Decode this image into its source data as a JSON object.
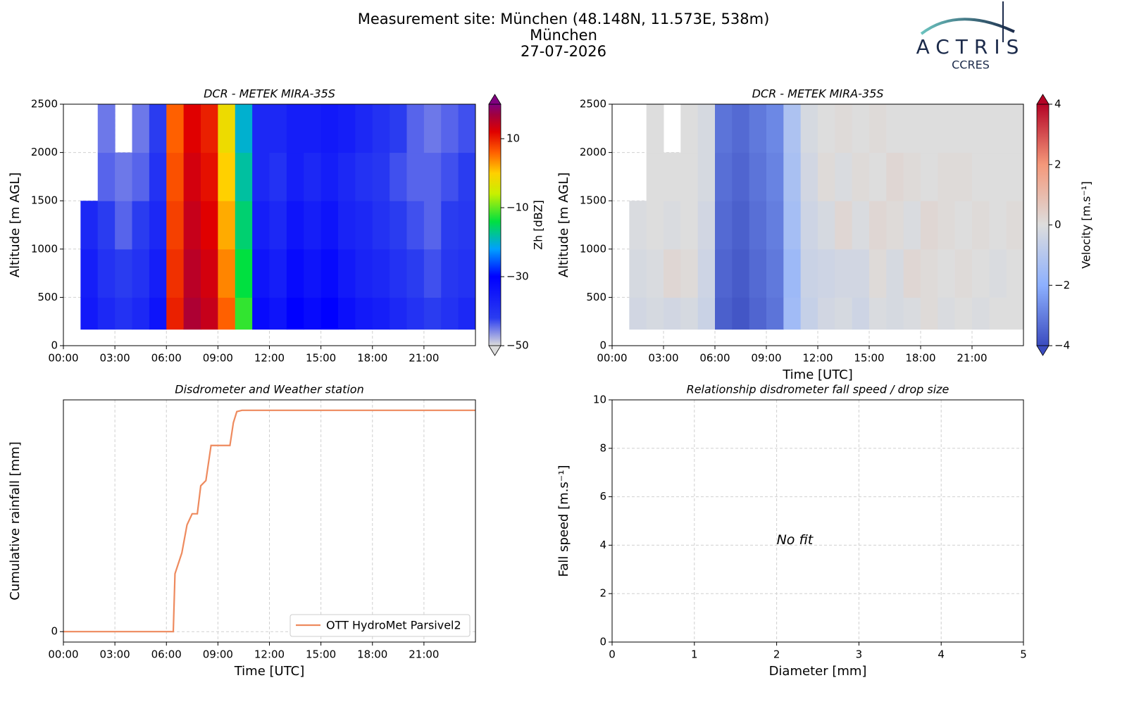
{
  "header": {
    "title_lines": [
      "Measurement site: München (48.148N, 11.573E, 538m)",
      "München",
      "27-07-2026"
    ]
  },
  "logo": {
    "name": "ACTRIS",
    "sub": "CCRES"
  },
  "chart_data": [
    {
      "type": "heatmap",
      "title": "DCR - METEK MIRA-35S",
      "ylabel": "Altitude [m AGL]",
      "xlim": [
        0,
        24
      ],
      "ylim": [
        0,
        2500
      ],
      "xticks": [
        {
          "value": 0,
          "label": "00:00"
        },
        {
          "value": 3,
          "label": "03:00"
        },
        {
          "value": 6,
          "label": "06:00"
        },
        {
          "value": 9,
          "label": "09:00"
        },
        {
          "value": 12,
          "label": "12:00"
        },
        {
          "value": 15,
          "label": "15:00"
        },
        {
          "value": 18,
          "label": "18:00"
        },
        {
          "value": 21,
          "label": "21:00"
        }
      ],
      "yticks": [
        0,
        500,
        1000,
        1500,
        2000,
        2500
      ],
      "grid": true,
      "x_bins": [
        0,
        1,
        2,
        3,
        4,
        5,
        6,
        7,
        8,
        9,
        10,
        11,
        12,
        13,
        14,
        15,
        16,
        17,
        18,
        19,
        20,
        21,
        22,
        23,
        24
      ],
      "y_bins": [
        170,
        500,
        1000,
        1500,
        2000,
        2500
      ],
      "values": [
        [
          null,
          -35,
          -38,
          -40,
          -38,
          -34,
          10,
          16,
          14,
          6,
          -12,
          -32,
          -34,
          -30,
          -32,
          -30,
          -33,
          -35,
          -36,
          -38,
          -40,
          -42,
          -40,
          -38
        ],
        [
          null,
          -36,
          -40,
          -42,
          -40,
          -36,
          9,
          15,
          13,
          4,
          -14,
          -34,
          -36,
          -32,
          -34,
          -32,
          -35,
          -37,
          -38,
          -40,
          -42,
          -43,
          -41,
          -40
        ],
        [
          null,
          -38,
          -42,
          -44,
          -42,
          -38,
          8,
          14,
          12,
          2,
          -16,
          -36,
          -38,
          -34,
          -36,
          -34,
          -37,
          -38,
          -40,
          -42,
          -43,
          -44,
          -42,
          -41
        ],
        [
          null,
          null,
          -44,
          -45,
          -44,
          -40,
          7,
          13,
          11,
          0,
          -18,
          -38,
          -40,
          -36,
          -38,
          -36,
          -38,
          -40,
          -41,
          -43,
          -44,
          -44,
          -43,
          -42
        ],
        [
          null,
          null,
          -45,
          null,
          -45,
          -42,
          6,
          12,
          10,
          -2,
          -20,
          -38,
          -38,
          -36,
          -36,
          -35,
          -36,
          -38,
          -40,
          -42,
          -44,
          -45,
          -44,
          -43
        ]
      ],
      "colorbar": {
        "label": "Zh [dBZ]",
        "lim": [
          -50,
          20
        ],
        "ticks": [
          {
            "value": -50,
            "label": "−50"
          },
          {
            "value": -30,
            "label": "−30"
          },
          {
            "value": -10,
            "label": "−10"
          },
          10
        ],
        "stops": [
          [
            -50,
            "#dcdcdc"
          ],
          [
            -42,
            "#2a3cf0"
          ],
          [
            -30,
            "#0000ff"
          ],
          [
            -22,
            "#00a0ff"
          ],
          [
            -14,
            "#00e040"
          ],
          [
            -6,
            "#c8f000"
          ],
          [
            0,
            "#ffd000"
          ],
          [
            6,
            "#ff6000"
          ],
          [
            12,
            "#e00000"
          ],
          [
            17,
            "#a00040"
          ],
          [
            20,
            "#800080"
          ]
        ]
      }
    },
    {
      "type": "heatmap",
      "title": "DCR - METEK MIRA-35S",
      "ylabel": "Altitude [m AGL]",
      "xlabel": "Time [UTC]",
      "xlim": [
        0,
        24
      ],
      "ylim": [
        0,
        2500
      ],
      "xticks": [
        {
          "value": 0,
          "label": "00:00"
        },
        {
          "value": 3,
          "label": "03:00"
        },
        {
          "value": 6,
          "label": "06:00"
        },
        {
          "value": 9,
          "label": "09:00"
        },
        {
          "value": 12,
          "label": "12:00"
        },
        {
          "value": 15,
          "label": "15:00"
        },
        {
          "value": 18,
          "label": "18:00"
        },
        {
          "value": 21,
          "label": "21:00"
        }
      ],
      "yticks": [
        0,
        500,
        1000,
        1500,
        2000,
        2500
      ],
      "grid": true,
      "x_bins": [
        0,
        1,
        2,
        3,
        4,
        5,
        6,
        7,
        8,
        9,
        10,
        11,
        12,
        13,
        14,
        15,
        16,
        17,
        18,
        19,
        20,
        21,
        22,
        23,
        24
      ],
      "y_bins": [
        170,
        500,
        1000,
        1500,
        2000,
        2500
      ],
      "values": [
        [
          null,
          -0.3,
          -0.2,
          -0.3,
          -0.2,
          -0.5,
          -3.6,
          -3.8,
          -3.5,
          -3.2,
          -1.5,
          -0.6,
          -0.3,
          -0.2,
          -0.4,
          -0.1,
          -0.2,
          -0.1,
          0.1,
          -0.1,
          0,
          -0.1,
          0,
          0
        ],
        [
          null,
          -0.2,
          -0.1,
          0.2,
          0.1,
          -0.4,
          -3.5,
          -3.7,
          -3.4,
          -3.1,
          -1.6,
          -0.5,
          -0.4,
          -0.3,
          -0.3,
          0.1,
          -0.2,
          0.2,
          0.1,
          0,
          0.1,
          0,
          -0.1,
          0
        ],
        [
          null,
          -0.1,
          0,
          -0.1,
          0,
          -0.3,
          -3.4,
          -3.6,
          -3.3,
          -3.0,
          -1.4,
          -0.4,
          -0.2,
          0.2,
          -0.1,
          0.2,
          0.1,
          -0.1,
          0.2,
          0.1,
          0,
          0.1,
          0,
          0.1
        ],
        [
          null,
          null,
          0,
          0,
          0,
          -0.2,
          -3.3,
          -3.5,
          -3.2,
          -2.9,
          -1.3,
          -0.3,
          0.1,
          -0.1,
          0.1,
          0,
          0.2,
          0.1,
          0,
          0.1,
          0.1,
          0,
          0,
          0
        ],
        [
          null,
          null,
          0,
          null,
          0,
          -0.2,
          -3.2,
          -3.4,
          -3.1,
          -2.8,
          -1.2,
          -0.2,
          0,
          0.1,
          0,
          0.1,
          0,
          0,
          0,
          0,
          0,
          0,
          0,
          0
        ]
      ],
      "colorbar": {
        "label": "Velocity [m.s⁻¹]",
        "lim": [
          -4,
          4
        ],
        "ticks": [
          {
            "value": -4,
            "label": "−4"
          },
          {
            "value": -2,
            "label": "−2"
          },
          0,
          2,
          4
        ],
        "stops": [
          [
            -4,
            "#3b4cc0"
          ],
          [
            -2,
            "#8db0fe"
          ],
          [
            0,
            "#dddddd"
          ],
          [
            2,
            "#f4987a"
          ],
          [
            4,
            "#b40426"
          ]
        ]
      }
    },
    {
      "type": "line",
      "title": "Disdrometer and Weather station",
      "ylabel": "Cumulative rainfall [mm]",
      "xlabel": "Time [UTC]",
      "xlim": [
        0,
        24
      ],
      "ylim": [
        -1.6,
        35.6
      ],
      "xticks": [
        {
          "value": 0,
          "label": "00:00"
        },
        {
          "value": 3,
          "label": "03:00"
        },
        {
          "value": 6,
          "label": "06:00"
        },
        {
          "value": 9,
          "label": "09:00"
        },
        {
          "value": 12,
          "label": "12:00"
        },
        {
          "value": 15,
          "label": "15:00"
        },
        {
          "value": 18,
          "label": "18:00"
        },
        {
          "value": 21,
          "label": "21:00"
        }
      ],
      "yticks": [
        0
      ],
      "grid": true,
      "legend": "lower right",
      "x": [
        0,
        6.4,
        6.5,
        6.7,
        6.9,
        7.2,
        7.5,
        7.8,
        8.0,
        8.3,
        8.6,
        9.7,
        9.9,
        10.1,
        10.4,
        24
      ],
      "series": [
        {
          "name": "OTT HydroMet Parsivel2",
          "color": "#ee8a5e",
          "values": [
            0,
            0,
            8.9,
            10.5,
            12.1,
            16.4,
            18.1,
            18.1,
            22.4,
            23.2,
            28.6,
            28.6,
            32.1,
            33.8,
            34,
            34
          ]
        }
      ]
    },
    {
      "type": "scatter",
      "title": "Relationship disdrometer fall speed / drop size",
      "ylabel": "Fall speed [m.s⁻¹]",
      "xlabel": "Diameter [mm]",
      "xlim": [
        0,
        5
      ],
      "ylim": [
        0,
        10
      ],
      "xticks": [
        0,
        1,
        2,
        3,
        4,
        5
      ],
      "yticks": [
        0,
        2,
        4,
        6,
        8,
        10
      ],
      "grid": true,
      "annotation": "No fit"
    }
  ]
}
